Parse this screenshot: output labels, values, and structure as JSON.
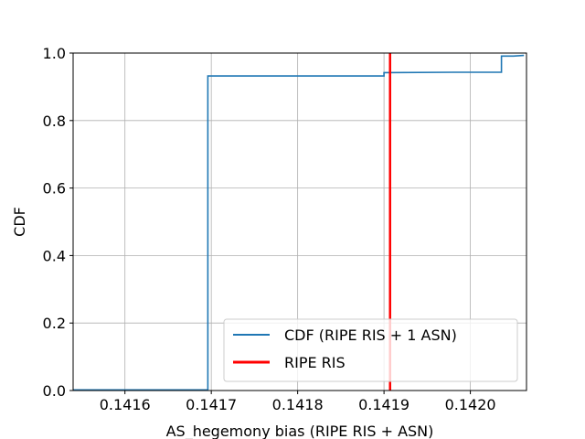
{
  "chart_data": {
    "type": "line",
    "title": "",
    "xlabel": "AS_hegemony bias (RIPE RIS + ASN)",
    "ylabel": "CDF",
    "xlim": [
      0.14154,
      0.142065
    ],
    "ylim": [
      0.0,
      1.0
    ],
    "x_ticks": [
      0.1416,
      0.1417,
      0.1418,
      0.1419,
      0.142
    ],
    "x_tick_labels": [
      "0.1416",
      "0.1417",
      "0.1418",
      "0.1419",
      "0.1420"
    ],
    "y_ticks": [
      0.0,
      0.2,
      0.4,
      0.6,
      0.8,
      1.0
    ],
    "y_tick_labels": [
      "0.0",
      "0.2",
      "0.4",
      "0.6",
      "0.8",
      "1.0"
    ],
    "grid": true,
    "legend_position": "lower-right",
    "series": [
      {
        "name": "CDF (RIPE RIS + 1 ASN)",
        "type": "step",
        "color": "#1f77b4",
        "x": [
          0.14154,
          0.141696,
          0.141696,
          0.1419,
          0.1419,
          0.14198,
          0.142036,
          0.142036,
          0.14205,
          0.142062
        ],
        "y": [
          0.002,
          0.002,
          0.932,
          0.932,
          0.942,
          0.943,
          0.943,
          0.991,
          0.991,
          0.993
        ]
      },
      {
        "name": "RIPE RIS",
        "type": "vline",
        "color": "#ff0000",
        "x": 0.141907
      }
    ]
  }
}
